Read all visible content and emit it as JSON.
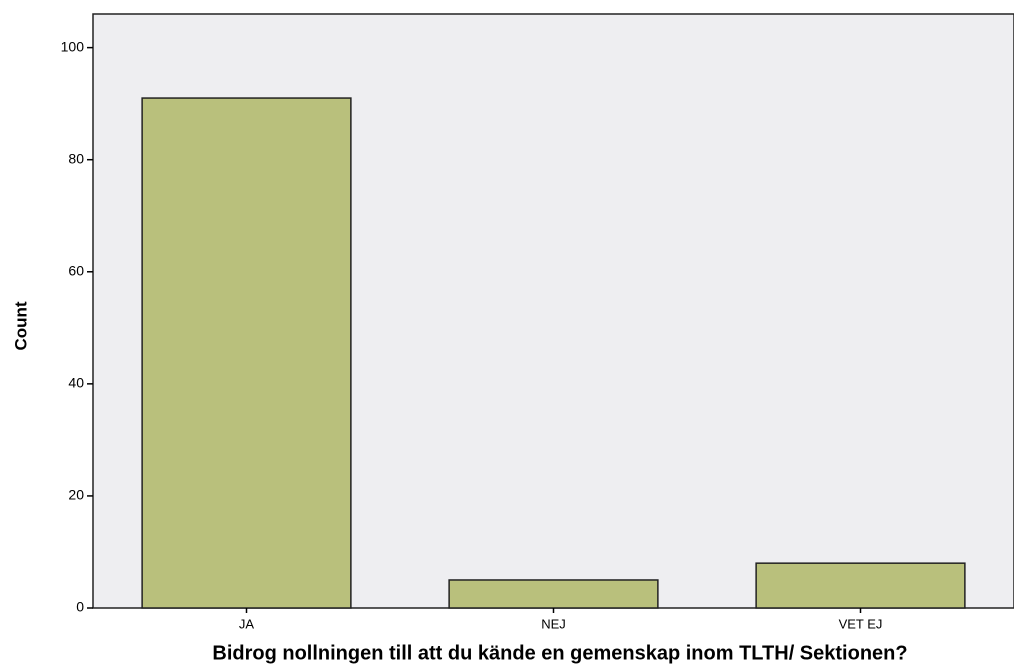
{
  "chart_data": {
    "type": "bar",
    "x_label": "Bidrog nollningen till att du kände en gemenskap inom TLTH/ Sektionen?",
    "y_label": "Count",
    "categories": [
      "JA",
      "NEJ",
      "VET EJ"
    ],
    "values": [
      91,
      5,
      8
    ],
    "color": "#b9c07c",
    "ylim": [
      0,
      106
    ],
    "yticks": [
      0,
      20,
      40,
      60,
      80,
      100
    ]
  }
}
